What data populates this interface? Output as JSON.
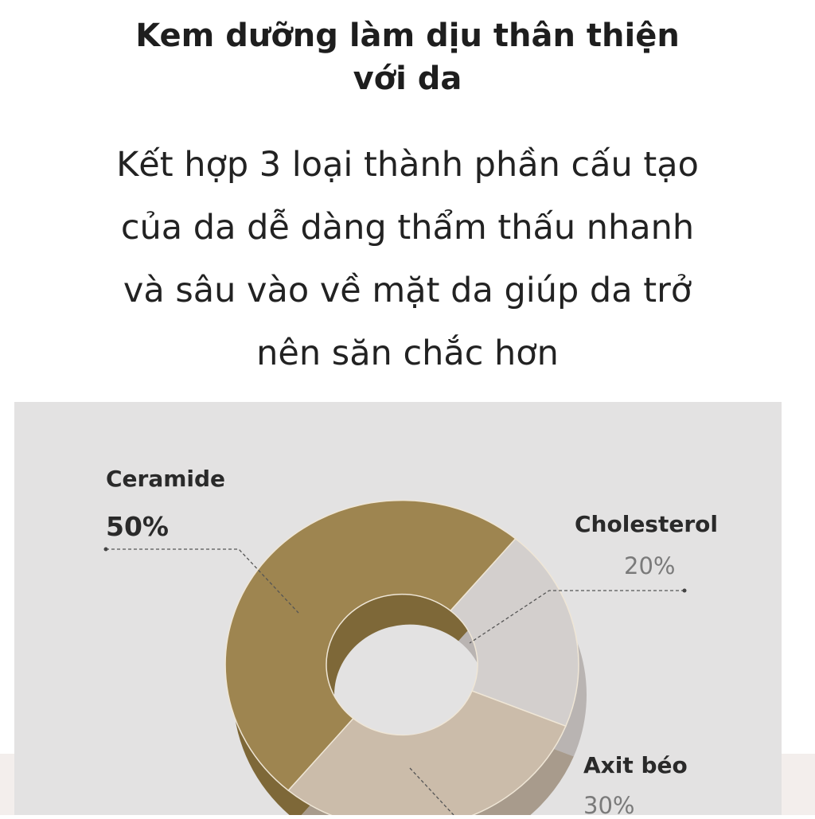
{
  "header": {
    "title_line1": "Kem dưỡng làm dịu thân thiện",
    "title_line2": "với da",
    "subtitle_lines": [
      "Kết hợp 3 loại thành phần cấu tạo",
      "của da dễ dàng thẩm thấu nhanh",
      "và sâu vào về mặt da giúp da trở",
      "nên săn chắc hơn"
    ]
  },
  "chart_data": {
    "type": "pie",
    "style": "3d-donut",
    "categories": [
      "Ceramide",
      "Cholesterol",
      "Axit béo"
    ],
    "values": [
      50,
      20,
      30
    ],
    "labels": [
      "50%",
      "20%",
      "30%"
    ],
    "colors": [
      "#9e8550",
      "#d3cfcd",
      "#cbbcaa"
    ],
    "side_colors": [
      "#7e6838",
      "#b9b4b2",
      "#a89b8c"
    ]
  }
}
